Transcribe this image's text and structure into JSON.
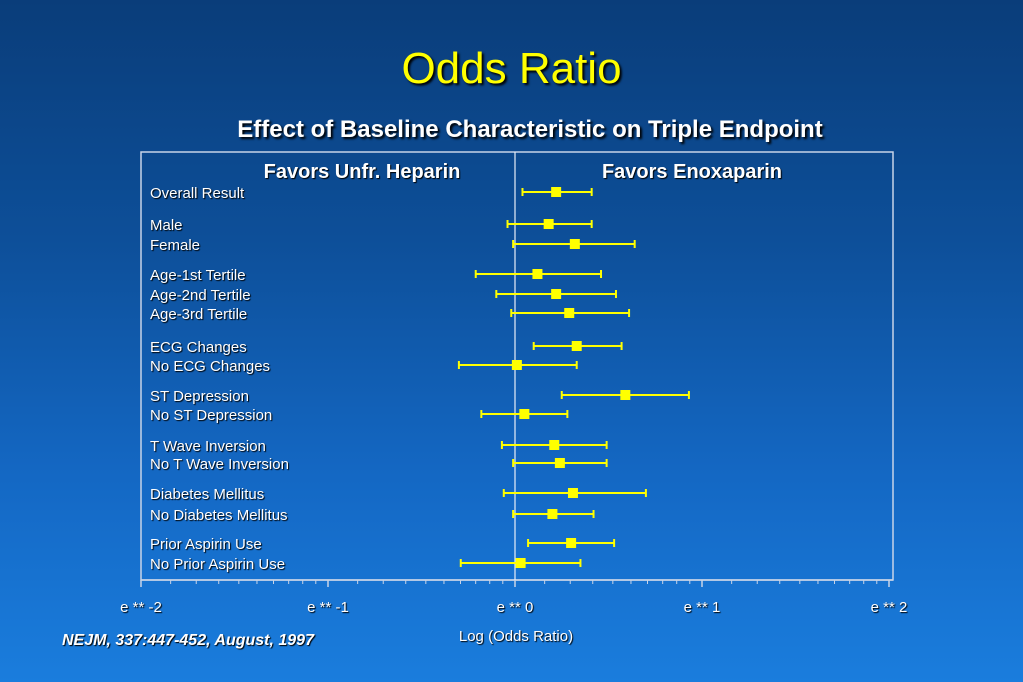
{
  "slide": {
    "title": "Odds Ratio",
    "subtitle": "Effect of Baseline Characteristic on Triple Endpoint",
    "citation": "NEJM, 337:447-452, August, 1997"
  },
  "chart_data": {
    "type": "forest",
    "panel_labels": {
      "left": "Favors Unfr. Heparin",
      "right": "Favors Enoxaparin"
    },
    "xlabel": "Log (Odds Ratio)",
    "ylabel": "",
    "xlim": [
      -2,
      2
    ],
    "x_ticks": [
      {
        "value": -2,
        "label": "e ** -2"
      },
      {
        "value": -1,
        "label": "e ** -1"
      },
      {
        "value": 0,
        "label": "e ** 0"
      },
      {
        "value": 1,
        "label": "e ** 1"
      },
      {
        "value": 2,
        "label": "e ** 2"
      }
    ],
    "reference_line": 0,
    "grid": false,
    "marker_color": "#ffff00",
    "rows": [
      {
        "label": "Overall Result",
        "estimate": 0.22,
        "lower": 0.04,
        "upper": 0.41
      },
      {
        "label": "Male",
        "estimate": 0.18,
        "lower": -0.04,
        "upper": 0.41
      },
      {
        "label": "Female",
        "estimate": 0.32,
        "lower": -0.01,
        "upper": 0.64
      },
      {
        "label": "Age-1st Tertile",
        "estimate": 0.12,
        "lower": -0.21,
        "upper": 0.46
      },
      {
        "label": "Age-2nd Tertile",
        "estimate": 0.22,
        "lower": -0.1,
        "upper": 0.54
      },
      {
        "label": "Age-3rd Tertile",
        "estimate": 0.29,
        "lower": -0.02,
        "upper": 0.61
      },
      {
        "label": "ECG Changes",
        "estimate": 0.33,
        "lower": 0.1,
        "upper": 0.57
      },
      {
        "label": "No ECG Changes",
        "estimate": 0.01,
        "lower": -0.3,
        "upper": 0.33
      },
      {
        "label": "ST Depression",
        "estimate": 0.59,
        "lower": 0.25,
        "upper": 0.93
      },
      {
        "label": "No ST Depression",
        "estimate": 0.05,
        "lower": -0.18,
        "upper": 0.28
      },
      {
        "label": "T Wave Inversion",
        "estimate": 0.21,
        "lower": -0.07,
        "upper": 0.49
      },
      {
        "label": "No T Wave Inversion",
        "estimate": 0.24,
        "lower": -0.01,
        "upper": 0.49
      },
      {
        "label": "Diabetes Mellitus",
        "estimate": 0.31,
        "lower": -0.06,
        "upper": 0.7
      },
      {
        "label": "No Diabetes Mellitus",
        "estimate": 0.2,
        "lower": -0.01,
        "upper": 0.42
      },
      {
        "label": "Prior Aspirin Use",
        "estimate": 0.3,
        "lower": 0.07,
        "upper": 0.53
      },
      {
        "label": "No Prior Aspirin Use",
        "estimate": 0.03,
        "lower": -0.29,
        "upper": 0.35
      }
    ]
  }
}
